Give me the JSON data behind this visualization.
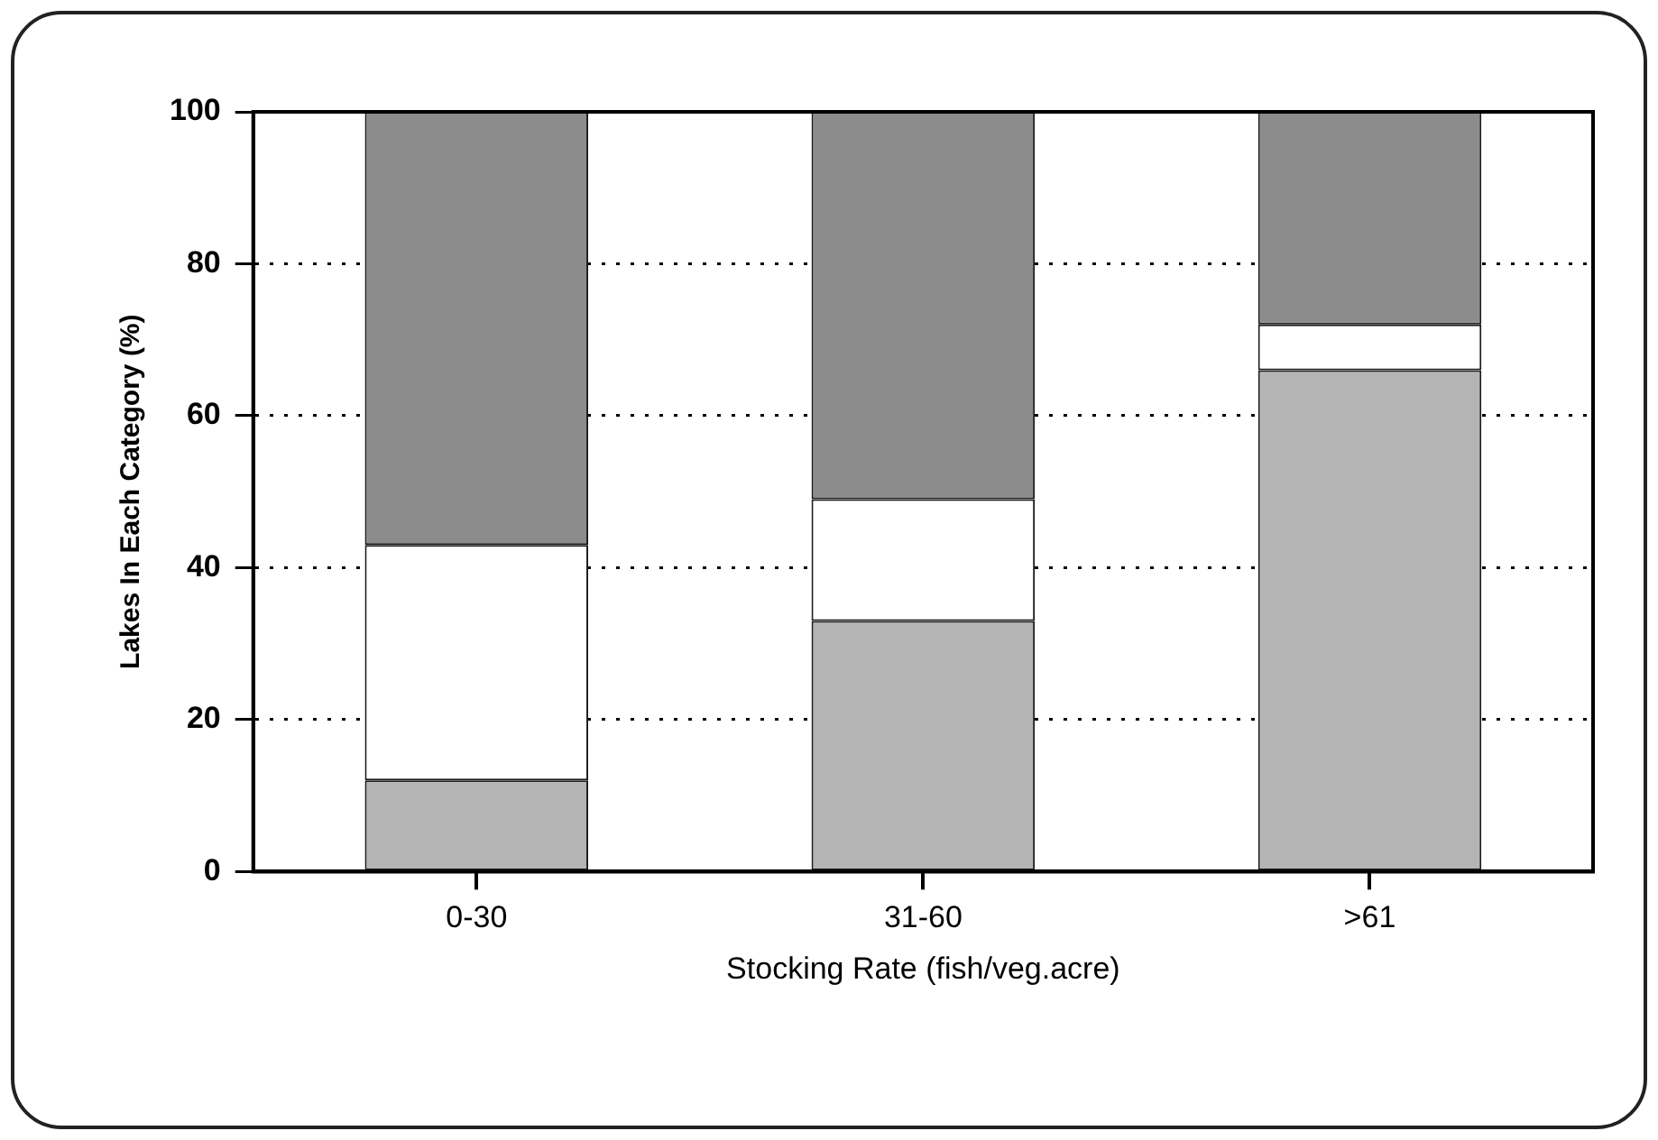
{
  "chart_data": {
    "type": "bar",
    "stacked": true,
    "xlabel": "Stocking Rate (fish/veg.acre)",
    "ylabel": "Lakes In Each Category (%)",
    "categories": [
      "0-30",
      "31-60",
      ">61"
    ],
    "series": [
      {
        "color": "#b4b4b4",
        "values": [
          12,
          33,
          66
        ]
      },
      {
        "color": "#ffffff",
        "values": [
          31,
          16,
          6
        ]
      },
      {
        "color": "#8c8c8c",
        "values": [
          57,
          51,
          28
        ]
      }
    ],
    "ylim": [
      0,
      100
    ],
    "yticks": [
      0,
      20,
      40,
      60,
      80,
      100
    ],
    "grid": "y",
    "legend": false
  }
}
